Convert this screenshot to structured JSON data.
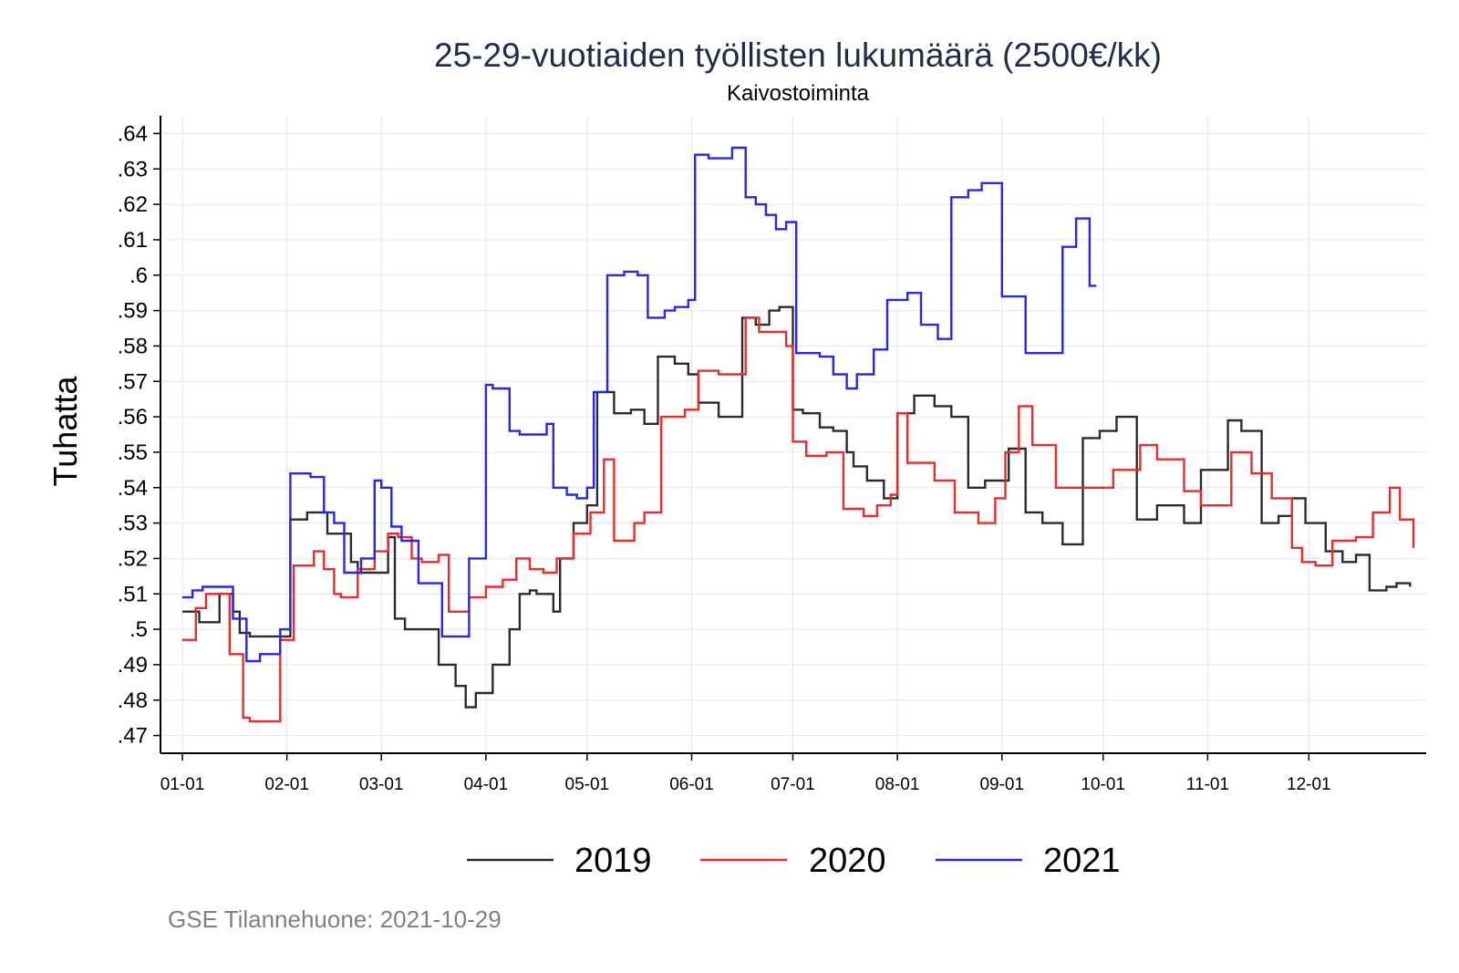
{
  "chart_data": {
    "type": "line",
    "title": "25-29-vuotiaiden työllisten lukumäärä (2500€/kk)",
    "subtitle": "Kaivostoiminta",
    "ylabel": "Tuhatta",
    "ylim": [
      0.465,
      0.645
    ],
    "xlim": [
      1,
      366
    ],
    "y_ticks": [
      0.47,
      0.48,
      0.49,
      0.5,
      0.51,
      0.52,
      0.53,
      0.54,
      0.55,
      0.56,
      0.57,
      0.58,
      0.59,
      0.6,
      0.61,
      0.62,
      0.63,
      0.64
    ],
    "y_tick_labels": [
      ".47",
      ".48",
      ".49",
      ".5",
      ".51",
      ".52",
      ".53",
      ".54",
      ".55",
      ".56",
      ".57",
      ".58",
      ".59",
      ".6",
      ".61",
      ".62",
      ".63",
      ".64"
    ],
    "x_ticks": [
      1,
      32,
      60,
      91,
      121,
      152,
      182,
      213,
      244,
      274,
      305,
      335
    ],
    "x_tick_labels": [
      "01-01",
      "02-01",
      "03-01",
      "04-01",
      "05-01",
      "06-01",
      "07-01",
      "08-01",
      "09-01",
      "10-01",
      "11-01",
      "12-01"
    ],
    "grid": true,
    "legend_position": "bottom",
    "x_unit": "day of year",
    "series": [
      {
        "name": "2019",
        "color": "#2b2b2b",
        "x": [
          1,
          6,
          12,
          16,
          18,
          21,
          33,
          38,
          44,
          51,
          53,
          62,
          64,
          67,
          70,
          77,
          82,
          85,
          88,
          93,
          98,
          101,
          104,
          106,
          111,
          113,
          117,
          121,
          124,
          129,
          134,
          138,
          142,
          147,
          151,
          154,
          160,
          167,
          171,
          175,
          178,
          182,
          185,
          190,
          194,
          198,
          200,
          204,
          209,
          213,
          218,
          224,
          229,
          234,
          239,
          246,
          251,
          256,
          262,
          268,
          273,
          278,
          284,
          290,
          298,
          303,
          311,
          315,
          321,
          326,
          330,
          334,
          340,
          345,
          349,
          353,
          358,
          361,
          365
        ],
        "y": [
          0.505,
          0.502,
          0.51,
          0.505,
          0.499,
          0.498,
          0.531,
          0.533,
          0.527,
          0.519,
          0.516,
          0.526,
          0.503,
          0.5,
          0.5,
          0.49,
          0.484,
          0.478,
          0.482,
          0.49,
          0.5,
          0.51,
          0.511,
          0.51,
          0.505,
          0.52,
          0.53,
          0.535,
          0.567,
          0.561,
          0.562,
          0.558,
          0.577,
          0.575,
          0.572,
          0.564,
          0.56,
          0.588,
          0.586,
          0.59,
          0.591,
          0.562,
          0.561,
          0.557,
          0.556,
          0.55,
          0.546,
          0.542,
          0.537,
          0.561,
          0.566,
          0.563,
          0.56,
          0.54,
          0.542,
          0.551,
          0.533,
          0.53,
          0.524,
          0.554,
          0.556,
          0.56,
          0.531,
          0.535,
          0.53,
          0.545,
          0.559,
          0.556,
          0.53,
          0.532,
          0.537,
          0.53,
          0.522,
          0.519,
          0.521,
          0.511,
          0.512,
          0.513,
          0.512
        ]
      },
      {
        "name": "2020",
        "color": "#ee2a2a",
        "x": [
          1,
          5,
          8,
          13,
          15,
          19,
          21,
          26,
          30,
          34,
          40,
          43,
          46,
          48,
          53,
          58,
          62,
          65,
          69,
          72,
          77,
          80,
          86,
          91,
          96,
          100,
          104,
          108,
          112,
          117,
          122,
          126,
          129,
          135,
          138,
          143,
          150,
          154,
          160,
          168,
          172,
          180,
          182,
          186,
          192,
          197,
          203,
          207,
          211,
          213,
          216,
          224,
          230,
          237,
          242,
          245,
          249,
          253,
          260,
          266,
          272,
          277,
          285,
          290,
          298,
          303,
          312,
          318,
          324,
          330,
          333,
          337,
          342,
          349,
          354,
          359,
          362,
          366
        ],
        "y": [
          0.497,
          0.506,
          0.51,
          0.51,
          0.493,
          0.475,
          0.474,
          0.474,
          0.497,
          0.518,
          0.522,
          0.517,
          0.51,
          0.509,
          0.517,
          0.522,
          0.527,
          0.526,
          0.52,
          0.519,
          0.521,
          0.505,
          0.509,
          0.512,
          0.514,
          0.52,
          0.517,
          0.516,
          0.52,
          0.527,
          0.533,
          0.548,
          0.525,
          0.53,
          0.533,
          0.56,
          0.562,
          0.573,
          0.572,
          0.588,
          0.584,
          0.58,
          0.553,
          0.549,
          0.55,
          0.534,
          0.532,
          0.535,
          0.538,
          0.561,
          0.547,
          0.542,
          0.533,
          0.53,
          0.537,
          0.55,
          0.563,
          0.552,
          0.54,
          0.54,
          0.54,
          0.545,
          0.552,
          0.548,
          0.539,
          0.535,
          0.55,
          0.544,
          0.537,
          0.523,
          0.519,
          0.518,
          0.525,
          0.526,
          0.533,
          0.54,
          0.531,
          0.523
        ]
      },
      {
        "name": "2021",
        "color": "#2626ee",
        "x": [
          1,
          4,
          7,
          11,
          16,
          20,
          24,
          27,
          30,
          33,
          39,
          43,
          46,
          49,
          54,
          58,
          60,
          63,
          66,
          71,
          76,
          78,
          80,
          86,
          91,
          93,
          96,
          98,
          101,
          104,
          109,
          111,
          115,
          118,
          121,
          123,
          127,
          132,
          136,
          139,
          144,
          147,
          151,
          153,
          157,
          164,
          168,
          171,
          174,
          177,
          180,
          183,
          190,
          194,
          198,
          201,
          206,
          210,
          216,
          220,
          225,
          229,
          234,
          238,
          244,
          251,
          256,
          262,
          266,
          270,
          272
        ],
        "y": [
          0.509,
          0.511,
          0.512,
          0.512,
          0.503,
          0.491,
          0.493,
          0.493,
          0.5,
          0.544,
          0.543,
          0.533,
          0.53,
          0.516,
          0.52,
          0.542,
          0.54,
          0.529,
          0.525,
          0.513,
          0.513,
          0.498,
          0.498,
          0.52,
          0.569,
          0.568,
          0.568,
          0.556,
          0.555,
          0.555,
          0.558,
          0.54,
          0.538,
          0.537,
          0.54,
          0.567,
          0.6,
          0.601,
          0.6,
          0.588,
          0.59,
          0.591,
          0.593,
          0.634,
          0.633,
          0.636,
          0.622,
          0.62,
          0.617,
          0.613,
          0.615,
          0.578,
          0.577,
          0.572,
          0.568,
          0.572,
          0.579,
          0.593,
          0.595,
          0.586,
          0.582,
          0.622,
          0.624,
          0.626,
          0.594,
          0.578,
          0.578,
          0.608,
          0.616,
          0.597,
          0.597
        ]
      }
    ]
  },
  "source_note": "GSE Tilannehuone: 2021-10-29"
}
